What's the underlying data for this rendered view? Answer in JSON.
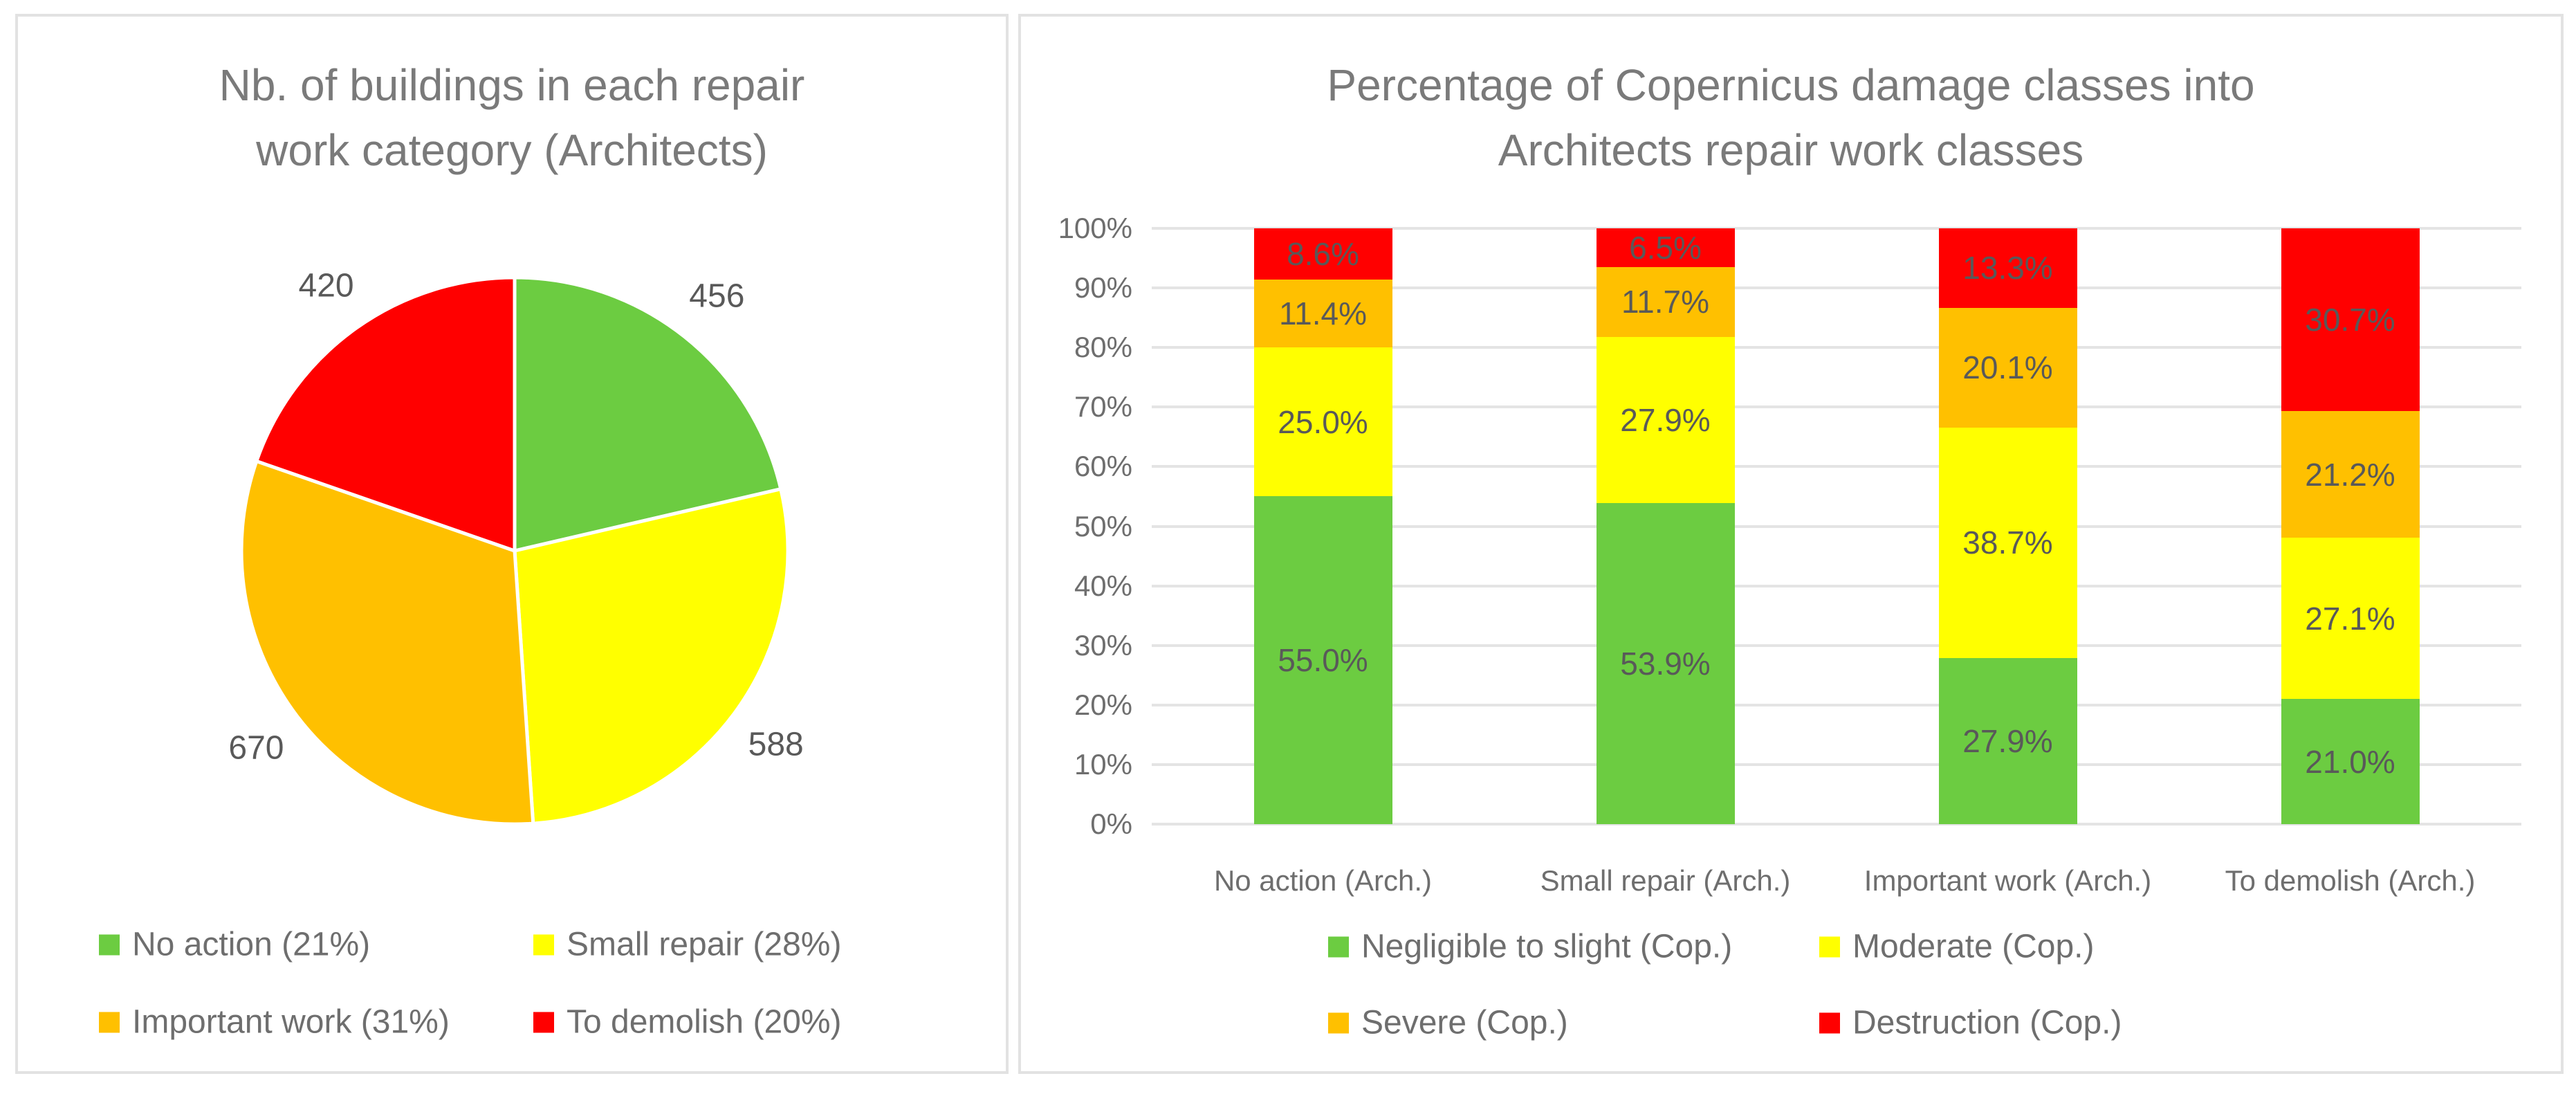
{
  "colors": {
    "green": "#6CCC41",
    "yellow": "#FFFF00",
    "orange": "#FFC000",
    "red": "#FF0000",
    "title_text": "#7A7A7A",
    "label_text": "#595959",
    "axis_text": "#6E6E6E",
    "gridline": "#E4E4E4",
    "panel_border": "#E2E2E2"
  },
  "chart_data": [
    {
      "type": "pie",
      "title": "Nb. of buildings in each repair work category (Architects)",
      "title_lines": [
        "Nb. of buildings in each repair",
        "work category (Architects)"
      ],
      "categories": [
        "No action",
        "Small repair",
        "Important work",
        "To demolish"
      ],
      "values": [
        456,
        588,
        670,
        420
      ],
      "percents": [
        21,
        28,
        31,
        20
      ],
      "slice_colors": [
        "#6CCC41",
        "#FFFF00",
        "#FFC000",
        "#FF0000"
      ],
      "data_labels": [
        "456",
        "588",
        "670",
        "420"
      ],
      "start_angle_deg": 0,
      "direction": "clockwise",
      "legend_position": "bottom",
      "legend": [
        {
          "label": "No action (21%)",
          "color": "#6CCC41"
        },
        {
          "label": "Small repair (28%)",
          "color": "#FFFF00"
        },
        {
          "label": "Important work (31%)",
          "color": "#FFC000"
        },
        {
          "label": "To demolish  (20%)",
          "color": "#FF0000"
        }
      ]
    },
    {
      "type": "bar",
      "subtype": "stacked-100",
      "title": "Percentage of Copernicus damage classes into Architects repair work classes",
      "title_lines": [
        "Percentage of Copernicus damage classes into",
        "Architects repair work classes"
      ],
      "categories": [
        "No action (Arch.)",
        "Small repair (Arch.)",
        "Important work (Arch.)",
        "To demolish (Arch.)"
      ],
      "series": [
        {
          "name": "Negligible to slight (Cop.)",
          "color": "#6CCC41",
          "values": [
            55.0,
            53.9,
            27.9,
            21.0
          ]
        },
        {
          "name": "Moderate (Cop.)",
          "color": "#FFFF00",
          "values": [
            25.0,
            27.9,
            38.7,
            27.1
          ]
        },
        {
          "name": "Severe (Cop.)",
          "color": "#FFC000",
          "values": [
            11.4,
            11.7,
            20.1,
            21.2
          ]
        },
        {
          "name": "Destruction (Cop.)",
          "color": "#FF0000",
          "values": [
            8.6,
            6.5,
            13.3,
            30.7
          ]
        }
      ],
      "xlabel": "",
      "ylabel": "",
      "ylim": [
        0,
        100
      ],
      "y_ticks": [
        "0%",
        "10%",
        "20%",
        "30%",
        "40%",
        "50%",
        "60%",
        "70%",
        "80%",
        "90%",
        "100%"
      ],
      "grid": true,
      "legend_position": "bottom",
      "legend": [
        {
          "label": "Negligible to slight (Cop.)",
          "color": "#6CCC41"
        },
        {
          "label": "Moderate (Cop.)",
          "color": "#FFFF00"
        },
        {
          "label": "Severe (Cop.)",
          "color": "#FFC000"
        },
        {
          "label": "Destruction (Cop.)",
          "color": "#FF0000"
        }
      ]
    }
  ]
}
